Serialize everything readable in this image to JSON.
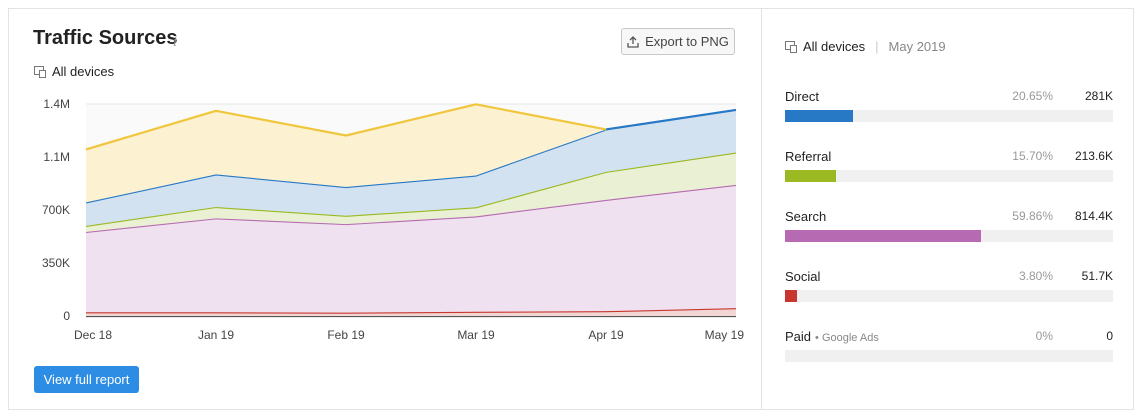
{
  "widget": {
    "title": "Traffic Sources",
    "export_label": "Export to PNG",
    "devices_label": "All devices",
    "view_full_report": "View full report"
  },
  "summary": {
    "devices_label": "All devices",
    "period": "May 2019",
    "sources": [
      {
        "name": "Direct",
        "sub": "",
        "percent": "20.65%",
        "value": "281K",
        "share": 0.2065,
        "color": "#2778c5"
      },
      {
        "name": "Referral",
        "sub": "",
        "percent": "15.70%",
        "value": "213.6K",
        "share": 0.157,
        "color": "#9ab922"
      },
      {
        "name": "Search",
        "sub": "",
        "percent": "59.86%",
        "value": "814.4K",
        "share": 0.5986,
        "color": "#b56ab1"
      },
      {
        "name": "Social",
        "sub": "",
        "percent": "3.80%",
        "value": "51.7K",
        "share": 0.038,
        "color": "#c9362e"
      },
      {
        "name": "Paid",
        "sub": "Google Ads",
        "percent": "0%",
        "value": "0",
        "share": 0,
        "color": "#333333"
      }
    ]
  },
  "chart_data": {
    "type": "area",
    "x": [
      "Dec 18",
      "Jan 19",
      "Feb 19",
      "Mar 19",
      "Apr 19",
      "May 19"
    ],
    "y_ticks": [
      "1.4M",
      "1.1M",
      "700K",
      "350K",
      "0"
    ],
    "y_tick_values": [
      1400000,
      1050000,
      700000,
      350000,
      0
    ],
    "ylim": [
      0,
      1400000
    ],
    "stacked": true,
    "grid": true,
    "series": [
      {
        "name": "Paid",
        "color": "#555555",
        "fill": "#d8d8d8",
        "values": [
          0,
          0,
          0,
          0,
          0,
          0
        ]
      },
      {
        "name": "Social",
        "color": "#c9362e",
        "fill": "#f2d6d4",
        "values": [
          25000,
          25000,
          22000,
          28000,
          32000,
          51700
        ]
      },
      {
        "name": "Search",
        "color": "#b56ab1",
        "fill": "#f0e1f0",
        "values": [
          530000,
          620000,
          585000,
          630000,
          735000,
          814400
        ]
      },
      {
        "name": "Referral",
        "color": "#9ab922",
        "fill": "#eaf0d3",
        "values": [
          40000,
          75000,
          55000,
          60000,
          185000,
          213600
        ]
      },
      {
        "name": "Direct",
        "color": "#2778c5",
        "fill": "#d3e2f1",
        "values": [
          155000,
          215000,
          190000,
          210000,
          280000,
          281000
        ]
      },
      {
        "name": "",
        "color": "#f0c63d",
        "fill": "#fcf1d1",
        "values": [
          350000,
          420000,
          340000,
          470000,
          0,
          null
        ]
      }
    ]
  }
}
